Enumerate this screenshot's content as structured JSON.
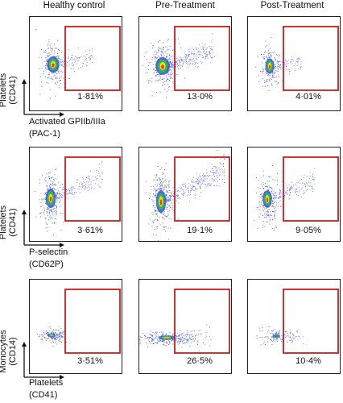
{
  "columns": [
    "Healthy control",
    "Pre-Treatment",
    "Post-Treatment"
  ],
  "rows": [
    {
      "y_label_main": "Platelets",
      "y_label_sub": "(CD41)",
      "x_label_main": "Activated GPIIb/IIIa",
      "x_label_sub": "(PAC-1)",
      "percentages": [
        "1·81%",
        "13·0%",
        "4·01%"
      ]
    },
    {
      "y_label_main": "Platelets",
      "y_label_sub": "(CD41)",
      "x_label_main": "P-selectin",
      "x_label_sub": "(CD62P)",
      "percentages": [
        "3·61%",
        "19·1%",
        "9·05%"
      ]
    },
    {
      "y_label_main": "Monocytes",
      "y_label_sub": "(CD14)",
      "x_label_main": "Platelets",
      "x_label_sub": "(CD41)",
      "percentages": [
        "3·51%",
        "26·5%",
        "10·4%"
      ]
    }
  ],
  "colors": {
    "gate": "#cc1b1b",
    "scatter": "#2b3fd6",
    "density_high": "#ff2a00",
    "density_mid": "#ffe000",
    "density_low": "#25c24a"
  }
}
